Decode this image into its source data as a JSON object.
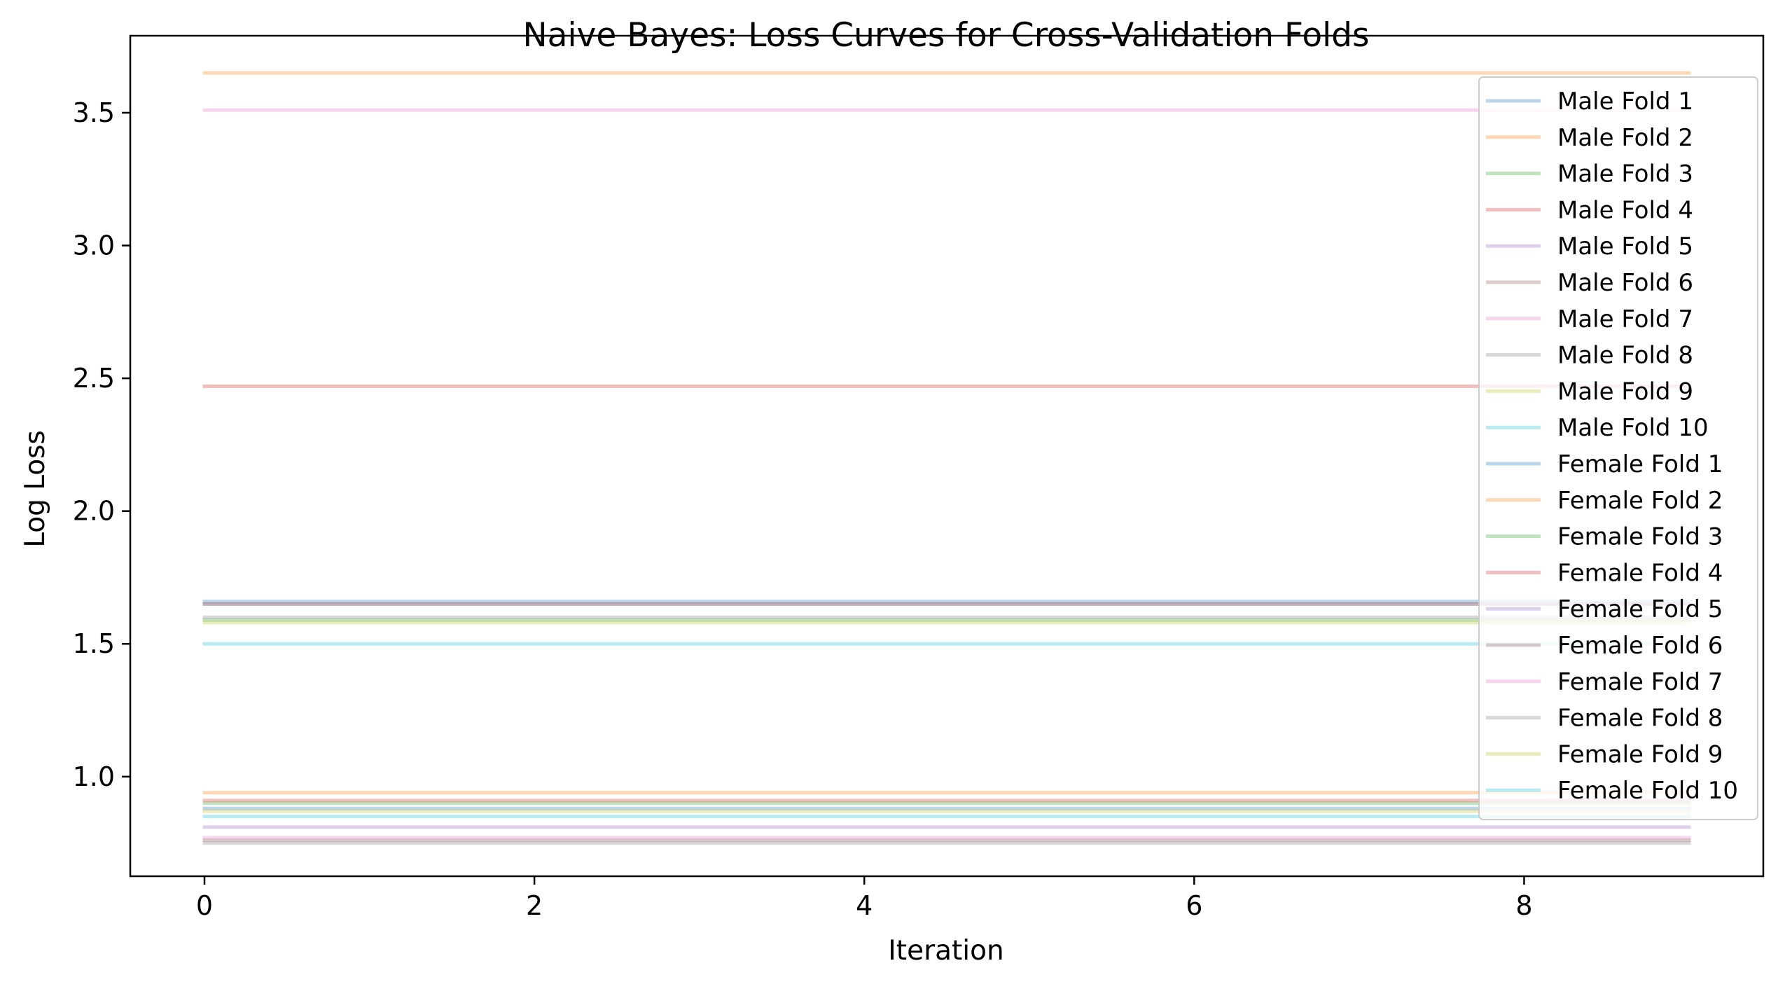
{
  "chart_data": {
    "type": "line",
    "title": "Naive Bayes: Loss Curves for Cross-Validation Folds",
    "xlabel": "Iteration",
    "ylabel": "Log Loss",
    "xlim": [
      -0.45,
      9.45
    ],
    "ylim": [
      0.625,
      3.79
    ],
    "x": [
      0,
      1,
      2,
      3,
      4,
      5,
      6,
      7,
      8,
      9
    ],
    "x_ticks": [
      0,
      2,
      4,
      6,
      8
    ],
    "x_tick_labels": [
      "0",
      "2",
      "4",
      "6",
      "8"
    ],
    "y_ticks": [
      1.0,
      1.5,
      2.0,
      2.5,
      3.0,
      3.5
    ],
    "y_tick_labels": [
      "1.0",
      "1.5",
      "2.0",
      "2.5",
      "3.0",
      "3.5"
    ],
    "grid": false,
    "legend_position": "upper-right",
    "series": [
      {
        "name": "Male Fold 1",
        "color": "#1f77b4",
        "values": [
          1.66,
          1.66,
          1.66,
          1.66,
          1.66,
          1.66,
          1.66,
          1.66,
          1.66,
          1.66
        ]
      },
      {
        "name": "Male Fold 2",
        "color": "#ff7f0e",
        "values": [
          3.65,
          3.65,
          3.65,
          3.65,
          3.65,
          3.65,
          3.65,
          3.65,
          3.65,
          3.65
        ]
      },
      {
        "name": "Male Fold 3",
        "color": "#2ca02c",
        "values": [
          1.59,
          1.59,
          1.59,
          1.59,
          1.59,
          1.59,
          1.59,
          1.59,
          1.59,
          1.59
        ]
      },
      {
        "name": "Male Fold 4",
        "color": "#d62728",
        "values": [
          2.47,
          2.47,
          2.47,
          2.47,
          2.47,
          2.47,
          2.47,
          2.47,
          2.47,
          2.47
        ]
      },
      {
        "name": "Male Fold 5",
        "color": "#9467bd",
        "values": [
          1.65,
          1.65,
          1.65,
          1.65,
          1.65,
          1.65,
          1.65,
          1.65,
          1.65,
          1.65
        ]
      },
      {
        "name": "Male Fold 6",
        "color": "#8c564b",
        "values": [
          1.65,
          1.65,
          1.65,
          1.65,
          1.65,
          1.65,
          1.65,
          1.65,
          1.65,
          1.65
        ]
      },
      {
        "name": "Male Fold 7",
        "color": "#e377c2",
        "values": [
          3.51,
          3.51,
          3.51,
          3.51,
          3.51,
          3.51,
          3.51,
          3.51,
          3.51,
          3.51
        ]
      },
      {
        "name": "Male Fold 8",
        "color": "#7f7f7f",
        "values": [
          1.6,
          1.6,
          1.6,
          1.6,
          1.6,
          1.6,
          1.6,
          1.6,
          1.6,
          1.6
        ]
      },
      {
        "name": "Male Fold 9",
        "color": "#bcbd22",
        "values": [
          1.58,
          1.58,
          1.58,
          1.58,
          1.58,
          1.58,
          1.58,
          1.58,
          1.58,
          1.58
        ]
      },
      {
        "name": "Male Fold 10",
        "color": "#17becf",
        "values": [
          1.5,
          1.5,
          1.5,
          1.5,
          1.5,
          1.5,
          1.5,
          1.5,
          1.5,
          1.5
        ]
      },
      {
        "name": "Female Fold 1",
        "color": "#1f77b4",
        "values": [
          0.88,
          0.88,
          0.88,
          0.88,
          0.88,
          0.88,
          0.88,
          0.88,
          0.88,
          0.88
        ]
      },
      {
        "name": "Female Fold 2",
        "color": "#ff7f0e",
        "values": [
          0.94,
          0.94,
          0.94,
          0.94,
          0.94,
          0.94,
          0.94,
          0.94,
          0.94,
          0.94
        ]
      },
      {
        "name": "Female Fold 3",
        "color": "#2ca02c",
        "values": [
          0.9,
          0.9,
          0.9,
          0.9,
          0.9,
          0.9,
          0.9,
          0.9,
          0.9,
          0.9
        ]
      },
      {
        "name": "Female Fold 4",
        "color": "#d62728",
        "values": [
          0.91,
          0.91,
          0.91,
          0.91,
          0.91,
          0.91,
          0.91,
          0.91,
          0.91,
          0.91
        ]
      },
      {
        "name": "Female Fold 5",
        "color": "#9467bd",
        "values": [
          0.81,
          0.81,
          0.81,
          0.81,
          0.81,
          0.81,
          0.81,
          0.81,
          0.81,
          0.81
        ]
      },
      {
        "name": "Female Fold 6",
        "color": "#8c564b",
        "values": [
          0.76,
          0.76,
          0.76,
          0.76,
          0.76,
          0.76,
          0.76,
          0.76,
          0.76,
          0.76
        ]
      },
      {
        "name": "Female Fold 7",
        "color": "#e377c2",
        "values": [
          0.77,
          0.77,
          0.77,
          0.77,
          0.77,
          0.77,
          0.77,
          0.77,
          0.77,
          0.77
        ]
      },
      {
        "name": "Female Fold 8",
        "color": "#7f7f7f",
        "values": [
          0.75,
          0.75,
          0.75,
          0.75,
          0.75,
          0.75,
          0.75,
          0.75,
          0.75,
          0.75
        ]
      },
      {
        "name": "Female Fold 9",
        "color": "#bcbd22",
        "values": [
          0.87,
          0.87,
          0.87,
          0.87,
          0.87,
          0.87,
          0.87,
          0.87,
          0.87,
          0.87
        ]
      },
      {
        "name": "Female Fold 10",
        "color": "#17becf",
        "values": [
          0.85,
          0.85,
          0.85,
          0.85,
          0.85,
          0.85,
          0.85,
          0.85,
          0.85,
          0.85
        ]
      }
    ]
  }
}
